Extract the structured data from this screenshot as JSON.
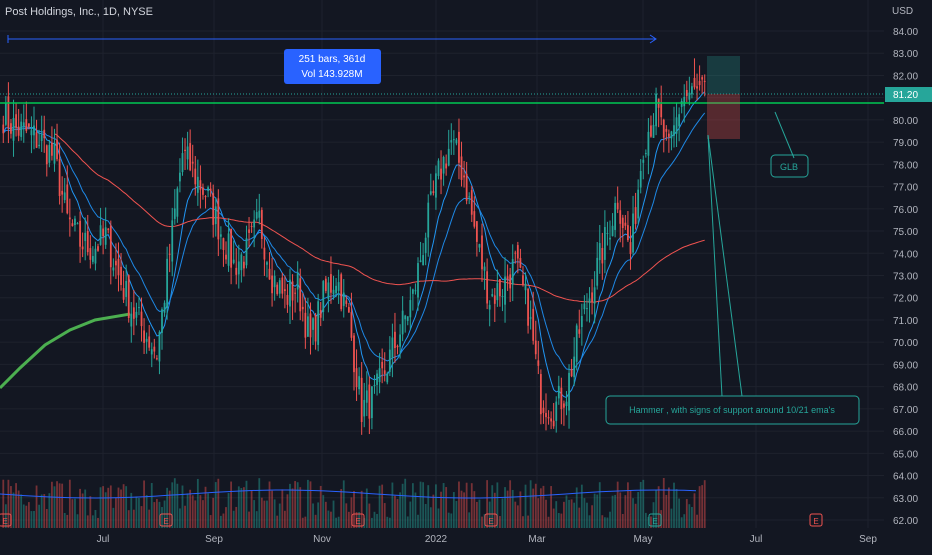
{
  "header": {
    "symbol_title": "Post Holdings, Inc., 1D, NYSE"
  },
  "axis": {
    "currency": "USD",
    "price_ticks": [
      "84.00",
      "83.00",
      "82.00",
      "81.00",
      "80.00",
      "79.00",
      "78.00",
      "77.00",
      "76.00",
      "75.00",
      "74.00",
      "73.00",
      "72.00",
      "71.00",
      "70.00",
      "69.00",
      "68.00",
      "67.00",
      "66.00",
      "65.00",
      "64.00",
      "63.00",
      "62.00"
    ],
    "time_ticks": [
      "Jul",
      "Sep",
      "Nov",
      "2022",
      "Mar",
      "May",
      "Jul",
      "Sep"
    ]
  },
  "last_price_label": "81.20",
  "measure_box": {
    "line1": "251 bars, 361d",
    "line2": "Vol 143.928M"
  },
  "annotations": {
    "glb": "GLB",
    "hammer": "Hammer , with signs of support around 10/21 ema's"
  },
  "earnings_badge": "E",
  "colors": {
    "background": "#131722",
    "up": "#26a69a",
    "down": "#ef5350",
    "accent_blue": "#2962ff",
    "ema_fast": "#2196f3",
    "ema_slow": "#1e88e5",
    "sma_long": "#ef5350",
    "sma_200": "#4caf50",
    "resistance_line": "#00c853"
  },
  "chart_data": {
    "type": "candlestick",
    "title": "Post Holdings, Inc., 1D, NYSE",
    "ylim": [
      62,
      84.5
    ],
    "ylabel": "USD",
    "horizontal_line": 80.7,
    "last_price": 81.2,
    "closes_sampled_weekly": [
      [
        "2021-05-17",
        80.2
      ],
      [
        "2021-05-24",
        79.6
      ],
      [
        "2021-05-31",
        79.4
      ],
      [
        "2021-06-07",
        79.0
      ],
      [
        "2021-06-14",
        78.3
      ],
      [
        "2021-06-21",
        75.5
      ],
      [
        "2021-06-28",
        74.5
      ],
      [
        "2021-07-05",
        74.2
      ],
      [
        "2021-07-12",
        74.8
      ],
      [
        "2021-07-19",
        73.0
      ],
      [
        "2021-07-26",
        71.5
      ],
      [
        "2021-08-02",
        70.5
      ],
      [
        "2021-08-09",
        69.5
      ],
      [
        "2021-08-16",
        74.0
      ],
      [
        "2021-08-23",
        78.5
      ],
      [
        "2021-08-30",
        77.5
      ],
      [
        "2021-09-06",
        76.5
      ],
      [
        "2021-09-13",
        75.0
      ],
      [
        "2021-09-20",
        73.5
      ],
      [
        "2021-09-27",
        74.0
      ],
      [
        "2021-10-04",
        75.5
      ],
      [
        "2021-10-11",
        73.0
      ],
      [
        "2021-10-18",
        72.0
      ],
      [
        "2021-10-25",
        72.5
      ],
      [
        "2021-11-01",
        70.0
      ],
      [
        "2021-11-08",
        72.0
      ],
      [
        "2021-11-15",
        73.0
      ],
      [
        "2021-11-22",
        71.0
      ],
      [
        "2021-11-29",
        67.0
      ],
      [
        "2021-12-06",
        67.5
      ],
      [
        "2021-12-13",
        69.0
      ],
      [
        "2021-12-20",
        70.5
      ],
      [
        "2021-12-27",
        72.0
      ],
      [
        "2022-01-03",
        75.0
      ],
      [
        "2022-01-10",
        77.5
      ],
      [
        "2022-01-17",
        79.0
      ],
      [
        "2022-01-24",
        77.5
      ],
      [
        "2022-01-31",
        74.5
      ],
      [
        "2022-02-07",
        72.0
      ],
      [
        "2022-02-14",
        72.5
      ],
      [
        "2022-02-21",
        73.5
      ],
      [
        "2022-02-28",
        71.5
      ],
      [
        "2022-03-07",
        67.5
      ],
      [
        "2022-03-14",
        67.0
      ],
      [
        "2022-03-21",
        67.8
      ],
      [
        "2022-03-28",
        70.5
      ],
      [
        "2022-04-04",
        72.5
      ],
      [
        "2022-04-11",
        74.5
      ],
      [
        "2022-04-18",
        76.5
      ],
      [
        "2022-04-25",
        74.0
      ],
      [
        "2022-05-02",
        79.0
      ],
      [
        "2022-05-09",
        80.5
      ],
      [
        "2022-05-16",
        78.5
      ],
      [
        "2022-05-23",
        81.0
      ],
      [
        "2022-05-30",
        81.2
      ]
    ],
    "indicators": [
      "EMA 10",
      "EMA 21",
      "SMA 100",
      "SMA 200"
    ]
  }
}
